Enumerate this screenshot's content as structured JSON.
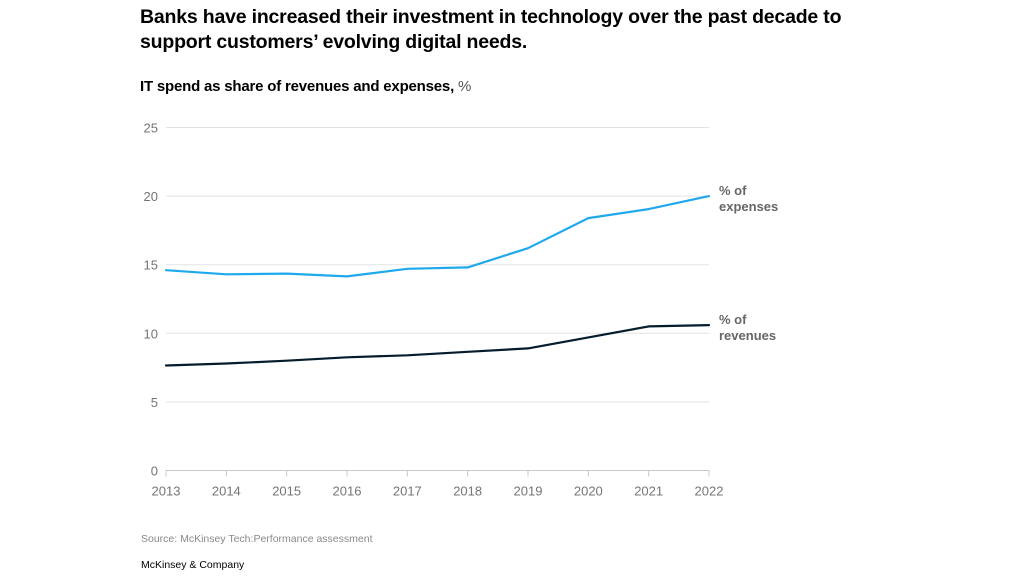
{
  "header": {
    "title": "Banks have increased their investment in technology over the past decade to support customers’ evolving digital needs.",
    "subtitle": "IT spend as share of revenues and expenses,",
    "subtitle_unit": "%"
  },
  "footer": {
    "source": "Source: McKinsey Tech:Performance assessment",
    "brand": "McKinsey & Company"
  },
  "chart_data": {
    "type": "line",
    "title": "IT spend as share of revenues and expenses, %",
    "xlabel": "",
    "ylabel": "%",
    "x": [
      2013,
      2014,
      2015,
      2016,
      2017,
      2018,
      2019,
      2020,
      2021,
      2022
    ],
    "x_tick_labels": [
      "2013",
      "2014",
      "2015",
      "2016",
      "2017",
      "2018",
      "2019",
      "2020",
      "2021",
      "2022"
    ],
    "ylim": [
      0,
      25
    ],
    "y_ticks": [
      0,
      5,
      10,
      15,
      20,
      25
    ],
    "grid": true,
    "legend": "direct labels at right end of lines",
    "series": [
      {
        "name": "% of expenses",
        "label_lines": [
          "% of",
          "expenses"
        ],
        "color": "#1fa9ec",
        "values": [
          14.6,
          14.3,
          14.35,
          14.15,
          14.7,
          14.8,
          16.2,
          18.4,
          19.05,
          20.0
        ]
      },
      {
        "name": "% of revenues",
        "label_lines": [
          "% of",
          "revenues"
        ],
        "color": "#051c2c",
        "values": [
          7.65,
          7.8,
          8.0,
          8.25,
          8.4,
          8.65,
          8.9,
          9.7,
          10.5,
          10.6
        ]
      }
    ]
  }
}
